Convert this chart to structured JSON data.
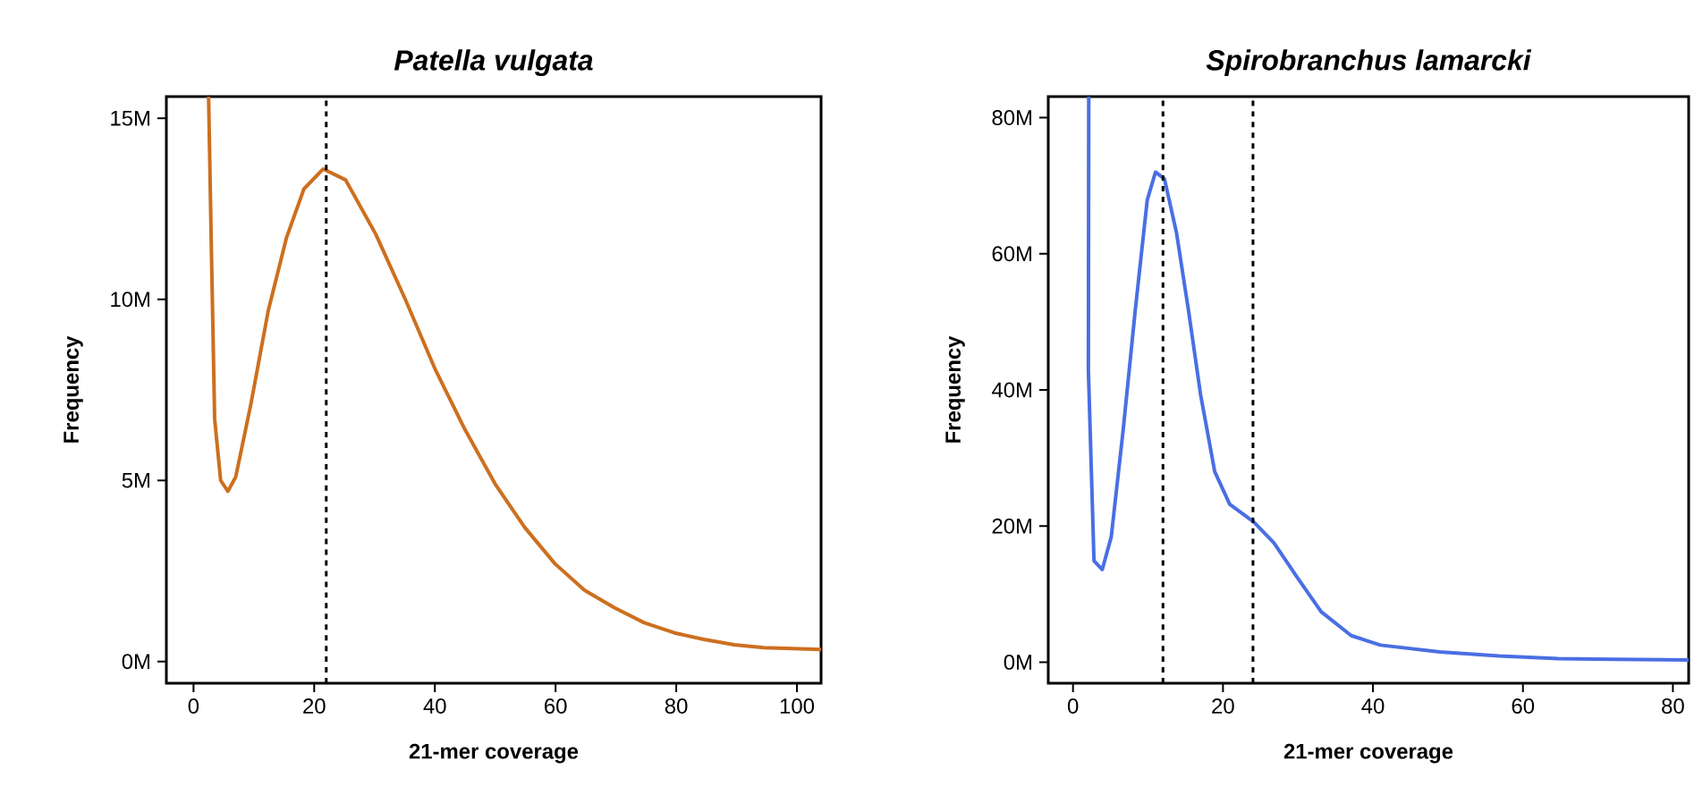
{
  "chart_data": [
    {
      "type": "line",
      "title": "Patella vulgata",
      "xlabel": "21-mer coverage",
      "ylabel": "Frequency",
      "xlim": [
        -4.5,
        104
      ],
      "ylim": [
        -0.6,
        15.6
      ],
      "xticks": [
        0,
        20,
        40,
        60,
        80,
        100
      ],
      "yticks": [
        {
          "value": 0,
          "label": "0M"
        },
        {
          "value": 5,
          "label": "5M"
        },
        {
          "value": 10,
          "label": "10M"
        },
        {
          "value": 15,
          "label": "15M"
        }
      ],
      "series": [
        {
          "color": "#cd6f1f",
          "x": [
            2.5,
            2.97,
            3.5,
            4.5,
            5.7,
            7.0,
            9.5,
            12.4,
            15.4,
            18.3,
            21.5,
            25.2,
            30.2,
            35.1,
            40.1,
            45.0,
            50.0,
            54.9,
            59.9,
            64.8,
            69.8,
            74.7,
            79.7,
            84.6,
            89.6,
            94.5,
            104
          ],
          "values": [
            15.6,
            11.3,
            6.7,
            5.0,
            4.7,
            5.1,
            7.1,
            9.7,
            11.7,
            13.05,
            13.6,
            13.3,
            11.8,
            10.0,
            8.05,
            6.4,
            4.9,
            3.7,
            2.7,
            1.97,
            1.48,
            1.07,
            0.79,
            0.61,
            0.46,
            0.38,
            0.33
          ]
        }
      ],
      "ref_lines": [
        {
          "axis": "x",
          "value": 22,
          "line_style": "dashed"
        }
      ]
    },
    {
      "type": "line",
      "title": "Spirobranchus lamarcki",
      "xlabel": "21-mer coverage",
      "ylabel": "Frequency",
      "xlim": [
        -3.3,
        82.1
      ],
      "ylim": [
        -3.1,
        83.1
      ],
      "xticks": [
        0,
        20,
        40,
        60,
        80
      ],
      "yticks": [
        {
          "value": 0,
          "label": "0M"
        },
        {
          "value": 20,
          "label": "20M"
        },
        {
          "value": 40,
          "label": "40M"
        },
        {
          "value": 60,
          "label": "60M"
        },
        {
          "value": 80,
          "label": "80M"
        }
      ],
      "series": [
        {
          "color": "#4a6fe3",
          "x": [
            2.1,
            2.05,
            2.8,
            3.9,
            5.1,
            6.7,
            8.3,
            9.9,
            11.0,
            12.2,
            13.8,
            15.4,
            17.0,
            18.9,
            20.9,
            24.1,
            26.8,
            30.0,
            33.1,
            37.1,
            41.0,
            48.9,
            56.8,
            64.7,
            82.1
          ],
          "values": [
            83.1,
            43,
            14.9,
            13.6,
            18.4,
            34.2,
            51.7,
            67.9,
            72.0,
            71.0,
            63.1,
            51.7,
            39.4,
            28.0,
            23.2,
            20.6,
            17.5,
            12.3,
            7.4,
            3.9,
            2.5,
            1.5,
            0.9,
            0.5,
            0.3
          ]
        }
      ],
      "ref_lines": [
        {
          "axis": "x",
          "value": 12,
          "line_style": "dashed"
        },
        {
          "axis": "x",
          "value": 24,
          "line_style": "dashed"
        }
      ]
    }
  ]
}
